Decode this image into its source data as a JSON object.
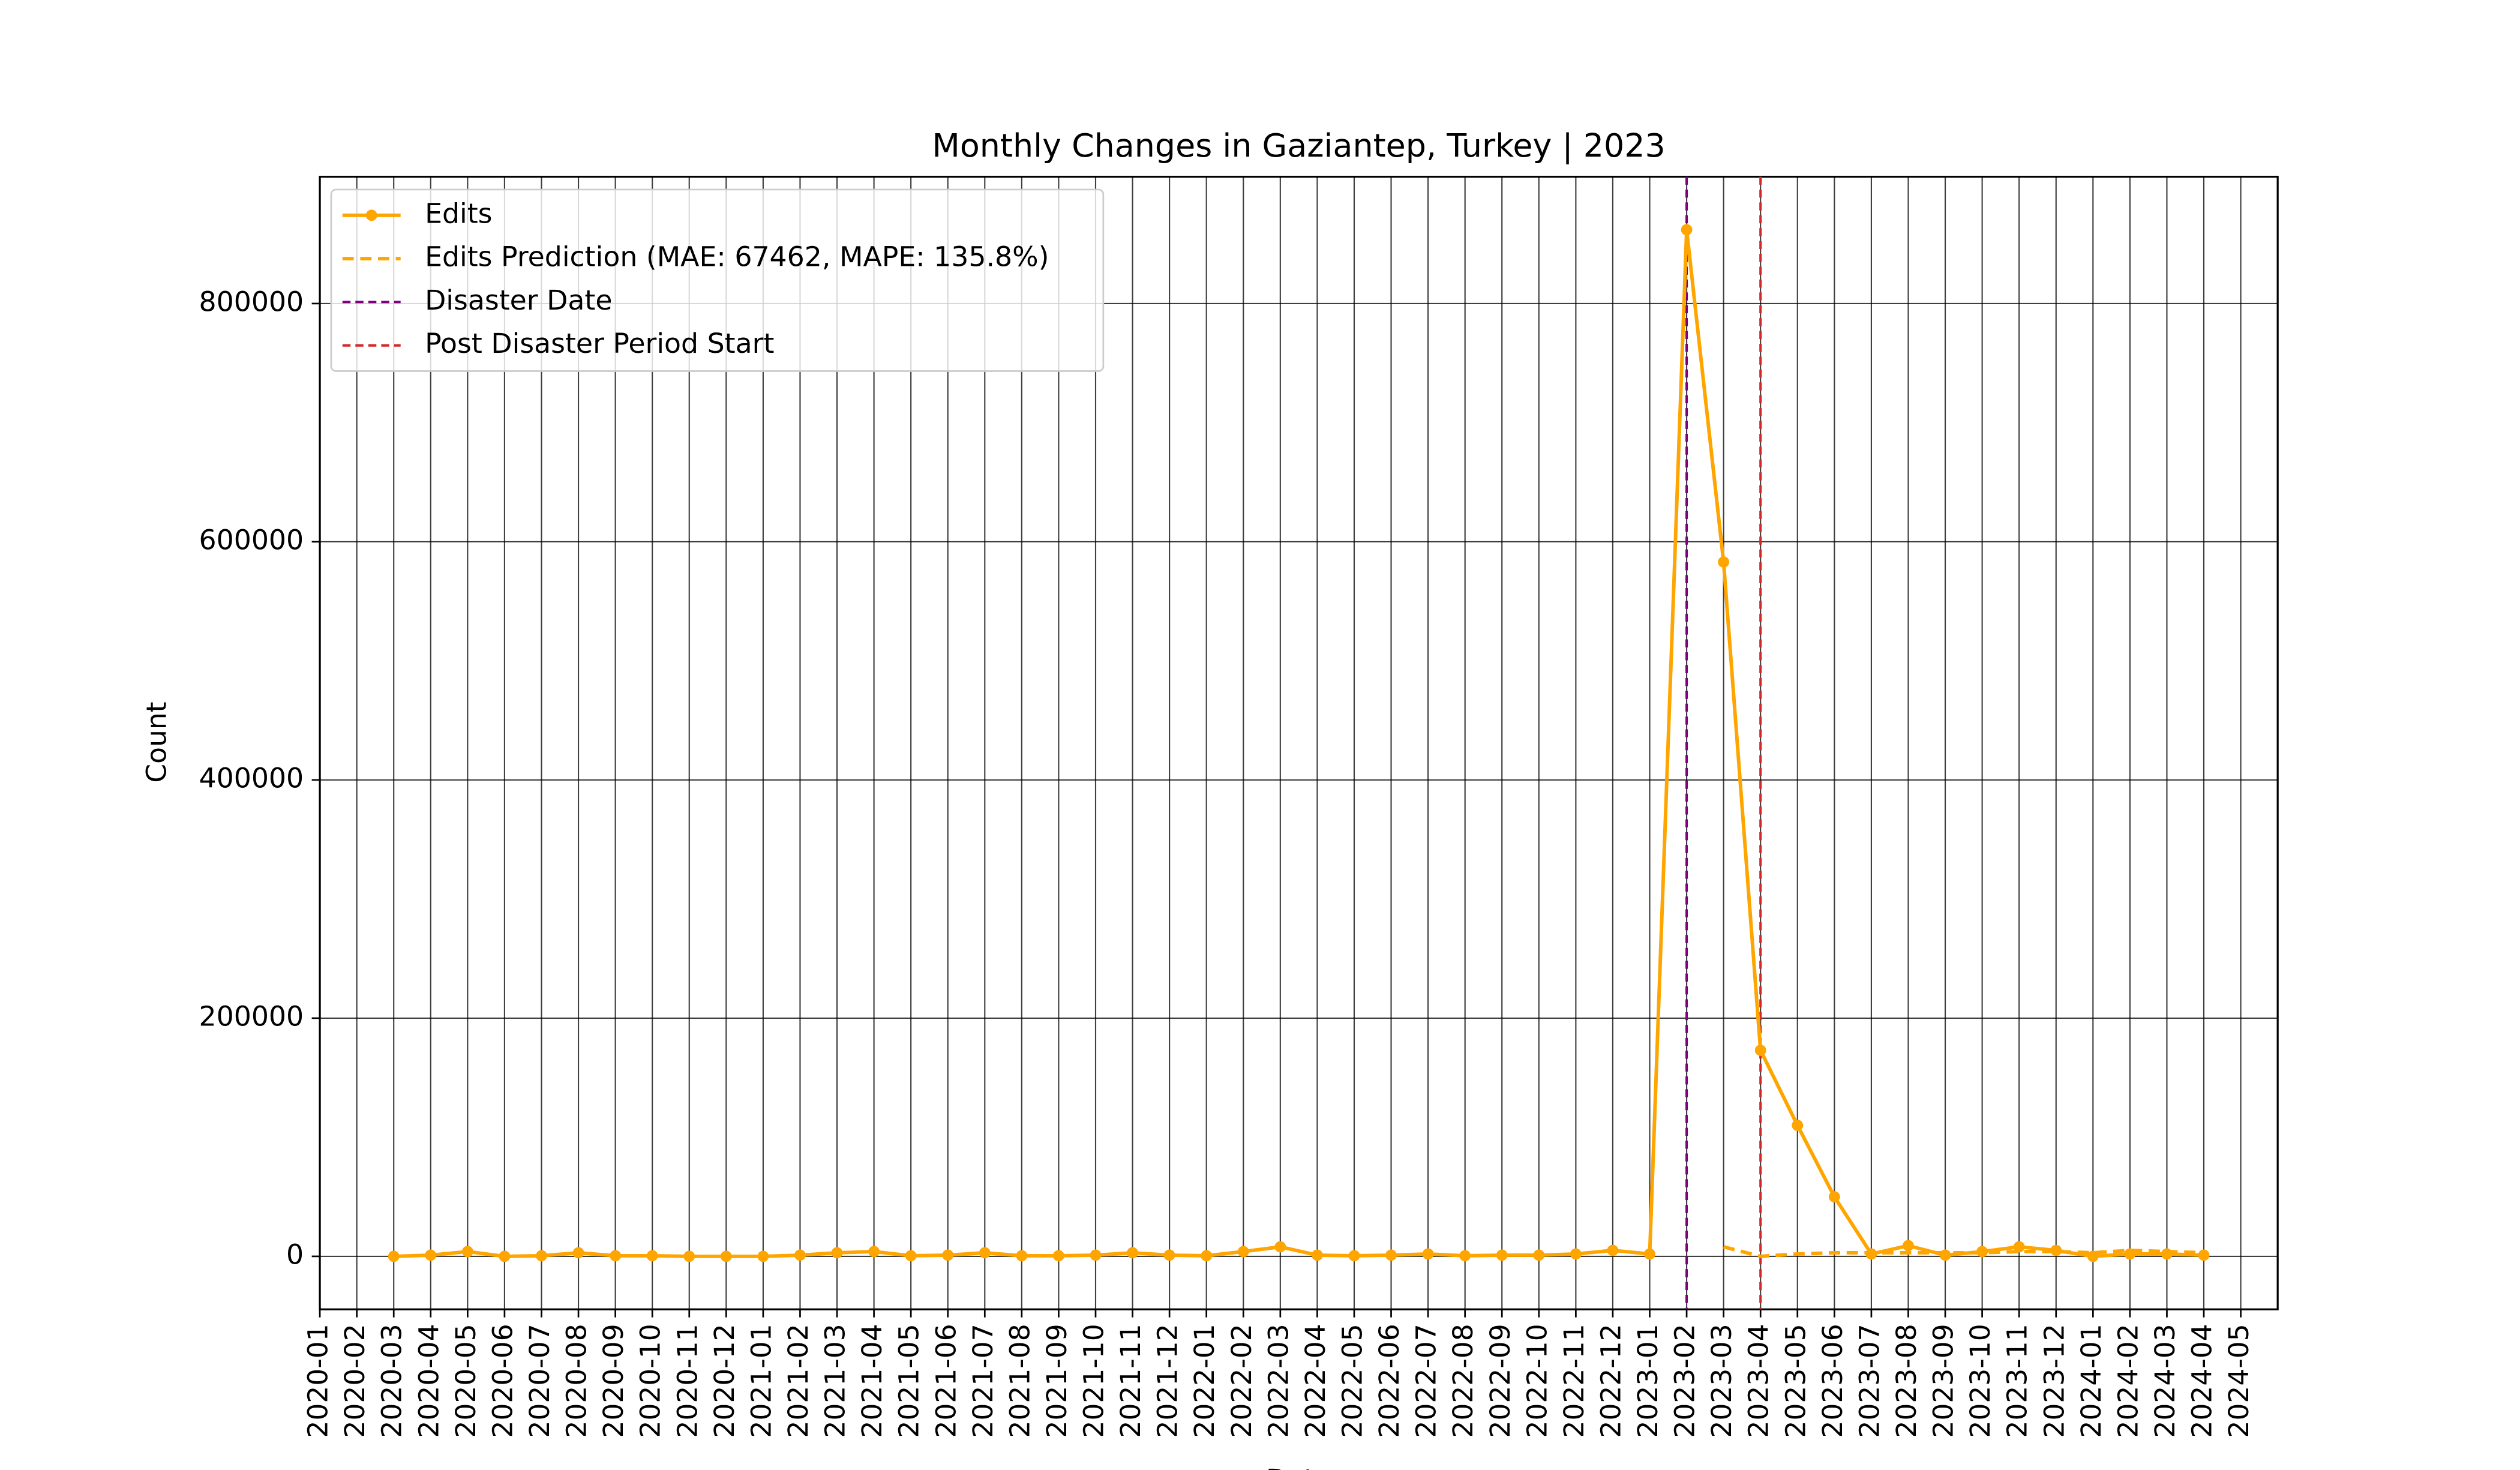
{
  "chart_data": {
    "type": "line",
    "title": "Monthly Changes in Gaziantep, Turkey | 2023",
    "xlabel": "Date",
    "ylabel": "Count",
    "x": [
      "2020-03",
      "2020-04",
      "2020-05",
      "2020-06",
      "2020-07",
      "2020-08",
      "2020-09",
      "2020-10",
      "2020-11",
      "2020-12",
      "2021-01",
      "2021-02",
      "2021-03",
      "2021-04",
      "2021-05",
      "2021-06",
      "2021-07",
      "2021-08",
      "2021-09",
      "2021-10",
      "2021-11",
      "2021-12",
      "2022-01",
      "2022-02",
      "2022-03",
      "2022-04",
      "2022-05",
      "2022-06",
      "2022-07",
      "2022-08",
      "2022-09",
      "2022-10",
      "2022-11",
      "2022-12",
      "2023-01",
      "2023-02",
      "2023-03",
      "2023-04",
      "2023-05",
      "2023-06",
      "2023-07",
      "2023-08",
      "2023-09",
      "2023-10",
      "2023-11",
      "2023-12",
      "2024-01",
      "2024-02",
      "2024-03",
      "2024-04"
    ],
    "series": [
      {
        "name": "Edits",
        "color": "#ffa500",
        "style": "solid",
        "marker": true,
        "values": [
          0,
          1000,
          4000,
          0,
          500,
          3000,
          500,
          500,
          0,
          0,
          0,
          1000,
          3000,
          4000,
          500,
          1000,
          3000,
          500,
          500,
          1000,
          3000,
          1000,
          500,
          4000,
          8000,
          1000,
          500,
          1000,
          2000,
          500,
          1000,
          1000,
          2000,
          5000,
          2000,
          862000,
          583000,
          173000,
          110000,
          50000,
          2000,
          9000,
          1000,
          4000,
          8000,
          5000,
          0,
          2000,
          2000,
          1000
        ]
      },
      {
        "name": "Edits Prediction (MAE: 67462, MAPE: 135.8%)",
        "color": "#ffa500",
        "style": "dashed",
        "marker": false,
        "values": [
          null,
          null,
          null,
          null,
          null,
          null,
          null,
          null,
          null,
          null,
          null,
          null,
          null,
          null,
          null,
          null,
          null,
          null,
          null,
          null,
          null,
          null,
          null,
          null,
          null,
          null,
          null,
          null,
          null,
          null,
          null,
          null,
          null,
          null,
          null,
          null,
          8000,
          0,
          2000,
          3000,
          3000,
          3000,
          3000,
          3000,
          4000,
          4000,
          3000,
          5000,
          4000,
          3000
        ]
      }
    ],
    "vlines": [
      {
        "name": "Disaster Date",
        "x": "2023-02",
        "color": "#800080"
      },
      {
        "name": "Post Disaster Period Start",
        "x": "2023-04",
        "color": "#d62728"
      }
    ],
    "xlim": [
      "2020-01",
      "2024-06"
    ],
    "xticks": [
      "2020-01",
      "2020-02",
      "2020-03",
      "2020-04",
      "2020-05",
      "2020-06",
      "2020-07",
      "2020-08",
      "2020-09",
      "2020-10",
      "2020-11",
      "2020-12",
      "2021-01",
      "2021-02",
      "2021-03",
      "2021-04",
      "2021-05",
      "2021-06",
      "2021-07",
      "2021-08",
      "2021-09",
      "2021-10",
      "2021-11",
      "2021-12",
      "2022-01",
      "2022-02",
      "2022-03",
      "2022-04",
      "2022-05",
      "2022-06",
      "2022-07",
      "2022-08",
      "2022-09",
      "2022-10",
      "2022-11",
      "2022-12",
      "2023-01",
      "2023-02",
      "2023-03",
      "2023-04",
      "2023-05",
      "2023-06",
      "2023-07",
      "2023-08",
      "2023-09",
      "2023-10",
      "2023-11",
      "2023-12",
      "2024-01",
      "2024-02",
      "2024-03",
      "2024-04",
      "2024-05"
    ],
    "ylim": [
      -44500,
      906500
    ],
    "yticks": [
      0,
      200000,
      400000,
      600000,
      800000
    ],
    "grid": true,
    "legend": "upper left"
  }
}
